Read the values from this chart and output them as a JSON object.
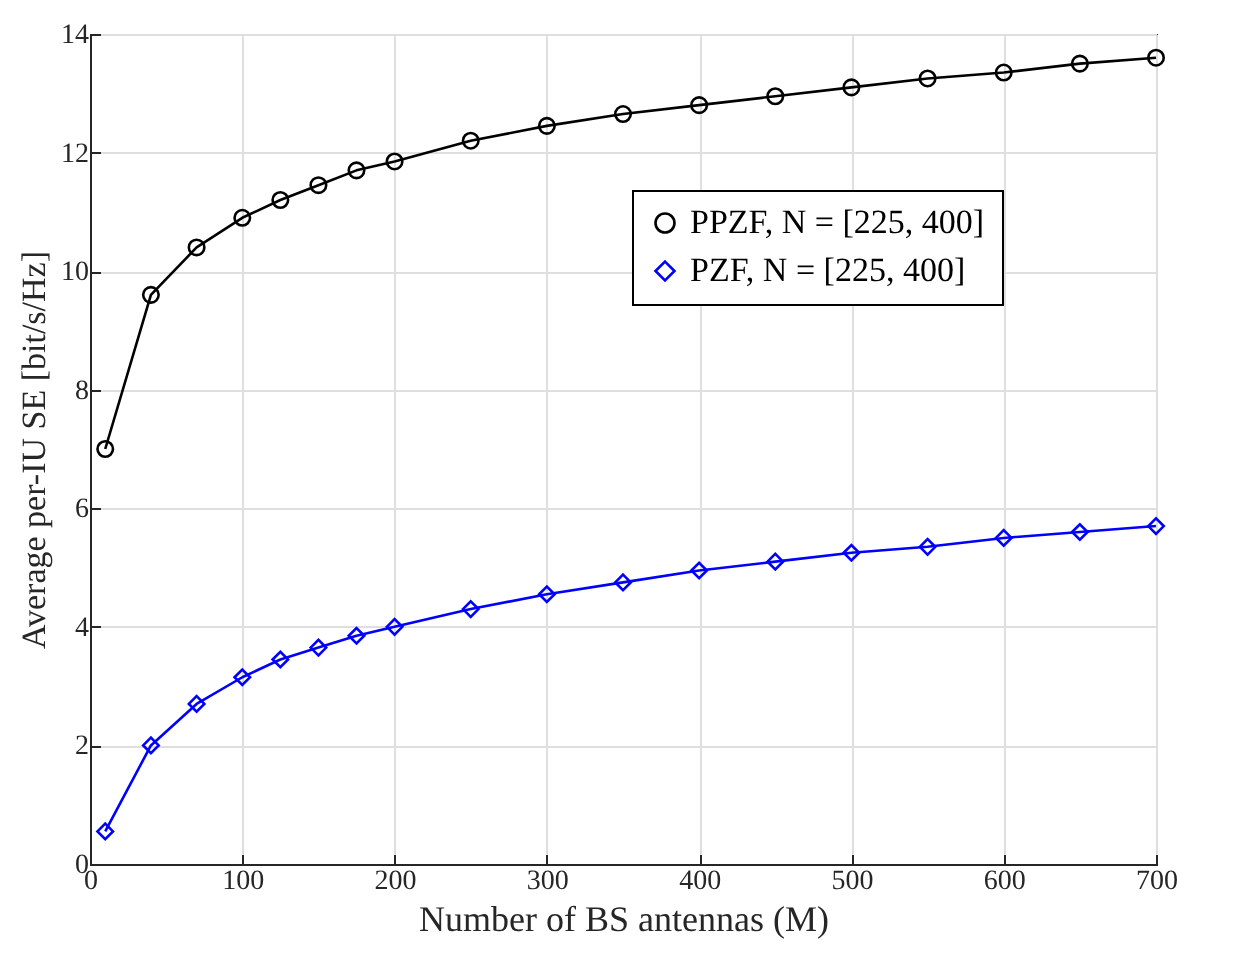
{
  "chart_data": {
    "type": "line",
    "xlabel": "Number of BS antennas (M)",
    "ylabel": "Average per-IU SE [bit/s/Hz]",
    "x": [
      10,
      40,
      70,
      100,
      125,
      150,
      175,
      200,
      250,
      300,
      350,
      400,
      450,
      500,
      550,
      600,
      650,
      700
    ],
    "series": [
      {
        "name": "PPZF, N = [225, 400]",
        "color": "#000000",
        "marker": "circle",
        "values": [
          7.0,
          9.6,
          10.4,
          10.9,
          11.2,
          11.45,
          11.7,
          11.85,
          12.2,
          12.45,
          12.65,
          12.8,
          12.95,
          13.1,
          13.25,
          13.35,
          13.5,
          13.6
        ]
      },
      {
        "name": "PZF, N = [225, 400]",
        "color": "#0000ff",
        "marker": "diamond",
        "values": [
          0.55,
          2.0,
          2.7,
          3.15,
          3.45,
          3.65,
          3.85,
          4.0,
          4.3,
          4.55,
          4.75,
          4.95,
          5.1,
          5.25,
          5.35,
          5.5,
          5.6,
          5.7
        ]
      }
    ],
    "xlim": [
      0,
      700
    ],
    "xticks": [
      0,
      100,
      200,
      300,
      400,
      500,
      600,
      700
    ],
    "ylim": [
      0,
      14
    ],
    "yticks": [
      0,
      2,
      4,
      6,
      8,
      10,
      12,
      14
    ],
    "grid": true,
    "legend": "top right",
    "line_style": "solid"
  }
}
